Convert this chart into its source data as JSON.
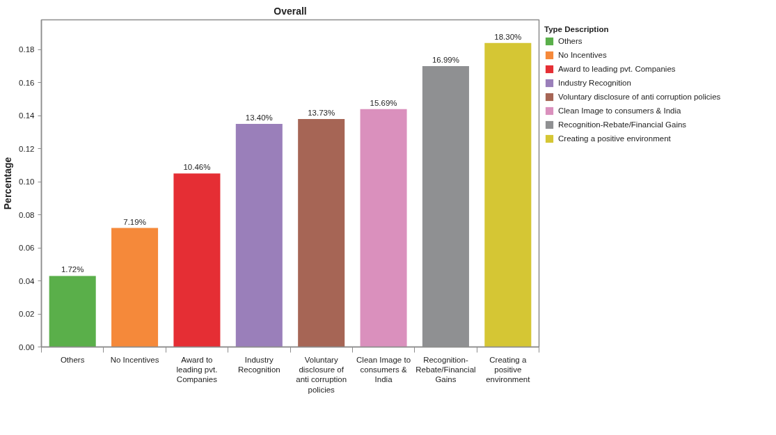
{
  "chart_data": {
    "type": "bar",
    "title": "Overall",
    "ylabel": "Percentage",
    "legend_title": "Type Description",
    "stacked": true,
    "categories": [
      "Others",
      "No Incentives",
      "Award to leading pvt. Companies",
      "Industry Recognition",
      "Voluntary disclosure of anti corruption policies",
      "Clean Image to consumers & India",
      "Recognition-Rebate/Financial Gains",
      "Creating a positive environment"
    ],
    "series": [
      {
        "name": "Others",
        "color": "#5aaf4a",
        "values": [
          0.043,
          null,
          null,
          null,
          null,
          null,
          null,
          null
        ]
      },
      {
        "name": "No Incentives",
        "color": "#f5893a",
        "values": [
          null,
          0.072,
          null,
          null,
          null,
          null,
          null,
          null
        ]
      },
      {
        "name": "Award to leading pvt. Companies",
        "color": "#e52e34",
        "values": [
          null,
          null,
          0.105,
          null,
          null,
          null,
          null,
          null
        ]
      },
      {
        "name": "Industry Recognition",
        "color": "#9a7fba",
        "values": [
          null,
          null,
          null,
          0.135,
          null,
          null,
          null,
          null
        ]
      },
      {
        "name": "Voluntary disclosure of anti corruption policies",
        "color": "#a66555",
        "values": [
          null,
          null,
          null,
          null,
          0.138,
          null,
          null,
          null
        ]
      },
      {
        "name": "Clean Image to consumers & India",
        "color": "#da90bd",
        "values": [
          null,
          null,
          null,
          null,
          null,
          0.144,
          null,
          null
        ]
      },
      {
        "name": "Recognition-Rebate/Financial Gains",
        "color": "#8f9092",
        "values": [
          null,
          null,
          null,
          null,
          null,
          null,
          0.17,
          null
        ]
      },
      {
        "name": "Creating a positive environment",
        "color": "#d5c634",
        "values": [
          null,
          null,
          null,
          null,
          null,
          null,
          null,
          0.184
        ]
      }
    ],
    "annotations": [
      {
        "text": "1.72%",
        "x": "Others",
        "y": 0.043
      },
      {
        "text": "7.19%",
        "x": "No Incentives",
        "y": 0.072
      },
      {
        "text": "10.46%",
        "x": "Award to leading pvt. Companies",
        "y": 0.105
      },
      {
        "text": "13.40%",
        "x": "Industry Recognition",
        "y": 0.135
      },
      {
        "text": "13.73%",
        "x": "Voluntary disclosure of anti corruption policies",
        "y": 0.138
      },
      {
        "text": "15.69%",
        "x": "Clean Image to consumers & India",
        "y": 0.144
      },
      {
        "text": "16.99%",
        "x": "Recognition-Rebate/Financial Gains",
        "y": 0.17
      },
      {
        "text": "18.30%",
        "x": "Creating a positive environment",
        "y": 0.184
      }
    ],
    "ylim": [
      0,
      0.198
    ],
    "yticks": [
      {
        "value": 0,
        "label": "0.00"
      },
      {
        "value": 0.02,
        "label": "0.02"
      },
      {
        "value": 0.04,
        "label": "0.04"
      },
      {
        "value": 0.06,
        "label": "0.06"
      },
      {
        "value": 0.08,
        "label": "0.08"
      },
      {
        "value": 0.1,
        "label": "0.10"
      },
      {
        "value": 0.12,
        "label": "0.12"
      },
      {
        "value": 0.14,
        "label": "0.14"
      },
      {
        "value": 0.16,
        "label": "0.16"
      },
      {
        "value": 0.18,
        "label": "0.18"
      }
    ],
    "grid": false,
    "legend": "right"
  }
}
